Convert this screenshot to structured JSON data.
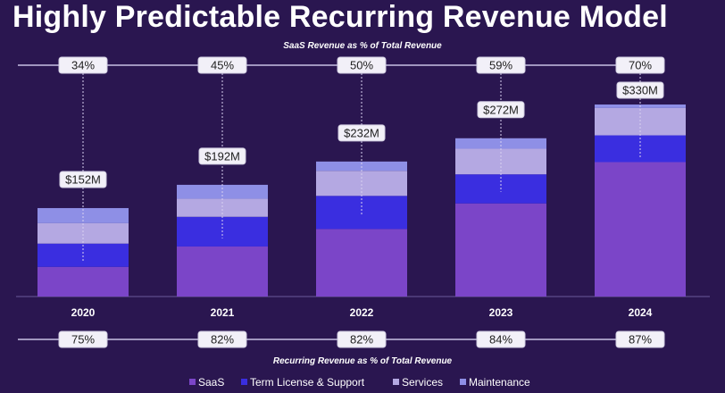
{
  "title": "Highly Predictable Recurring Revenue Model",
  "chart_data": {
    "type": "bar",
    "stacked": true,
    "categories": [
      "2020",
      "2021",
      "2022",
      "2023",
      "2024"
    ],
    "totals_label": [
      "$152M",
      "$192M",
      "$232M",
      "$272M",
      "$330M"
    ],
    "totals": [
      152,
      192,
      232,
      272,
      330
    ],
    "series": [
      {
        "name": "SaaS",
        "color": "#7b45c8",
        "values": [
          51,
          86,
          116,
          160,
          231
        ]
      },
      {
        "name": "Term License & Support",
        "color": "#3a2ee0",
        "values": [
          40,
          51,
          57,
          50,
          46
        ]
      },
      {
        "name": "Services",
        "color": "#b4a8e2",
        "values": [
          35,
          31,
          43,
          44,
          47
        ]
      },
      {
        "name": "Maintenance",
        "color": "#8e8fe6",
        "values": [
          26,
          24,
          16,
          18,
          6
        ]
      }
    ],
    "top_line": {
      "title": "SaaS Revenue as % of Total Revenue",
      "values": [
        "34%",
        "45%",
        "50%",
        "59%",
        "70%"
      ]
    },
    "bottom_line": {
      "title": "Recurring Revenue as % of Total Revenue",
      "values": [
        "75%",
        "82%",
        "82%",
        "84%",
        "87%"
      ]
    },
    "ylim": [
      0,
      330
    ],
    "grid": false,
    "legend_position": "bottom"
  }
}
